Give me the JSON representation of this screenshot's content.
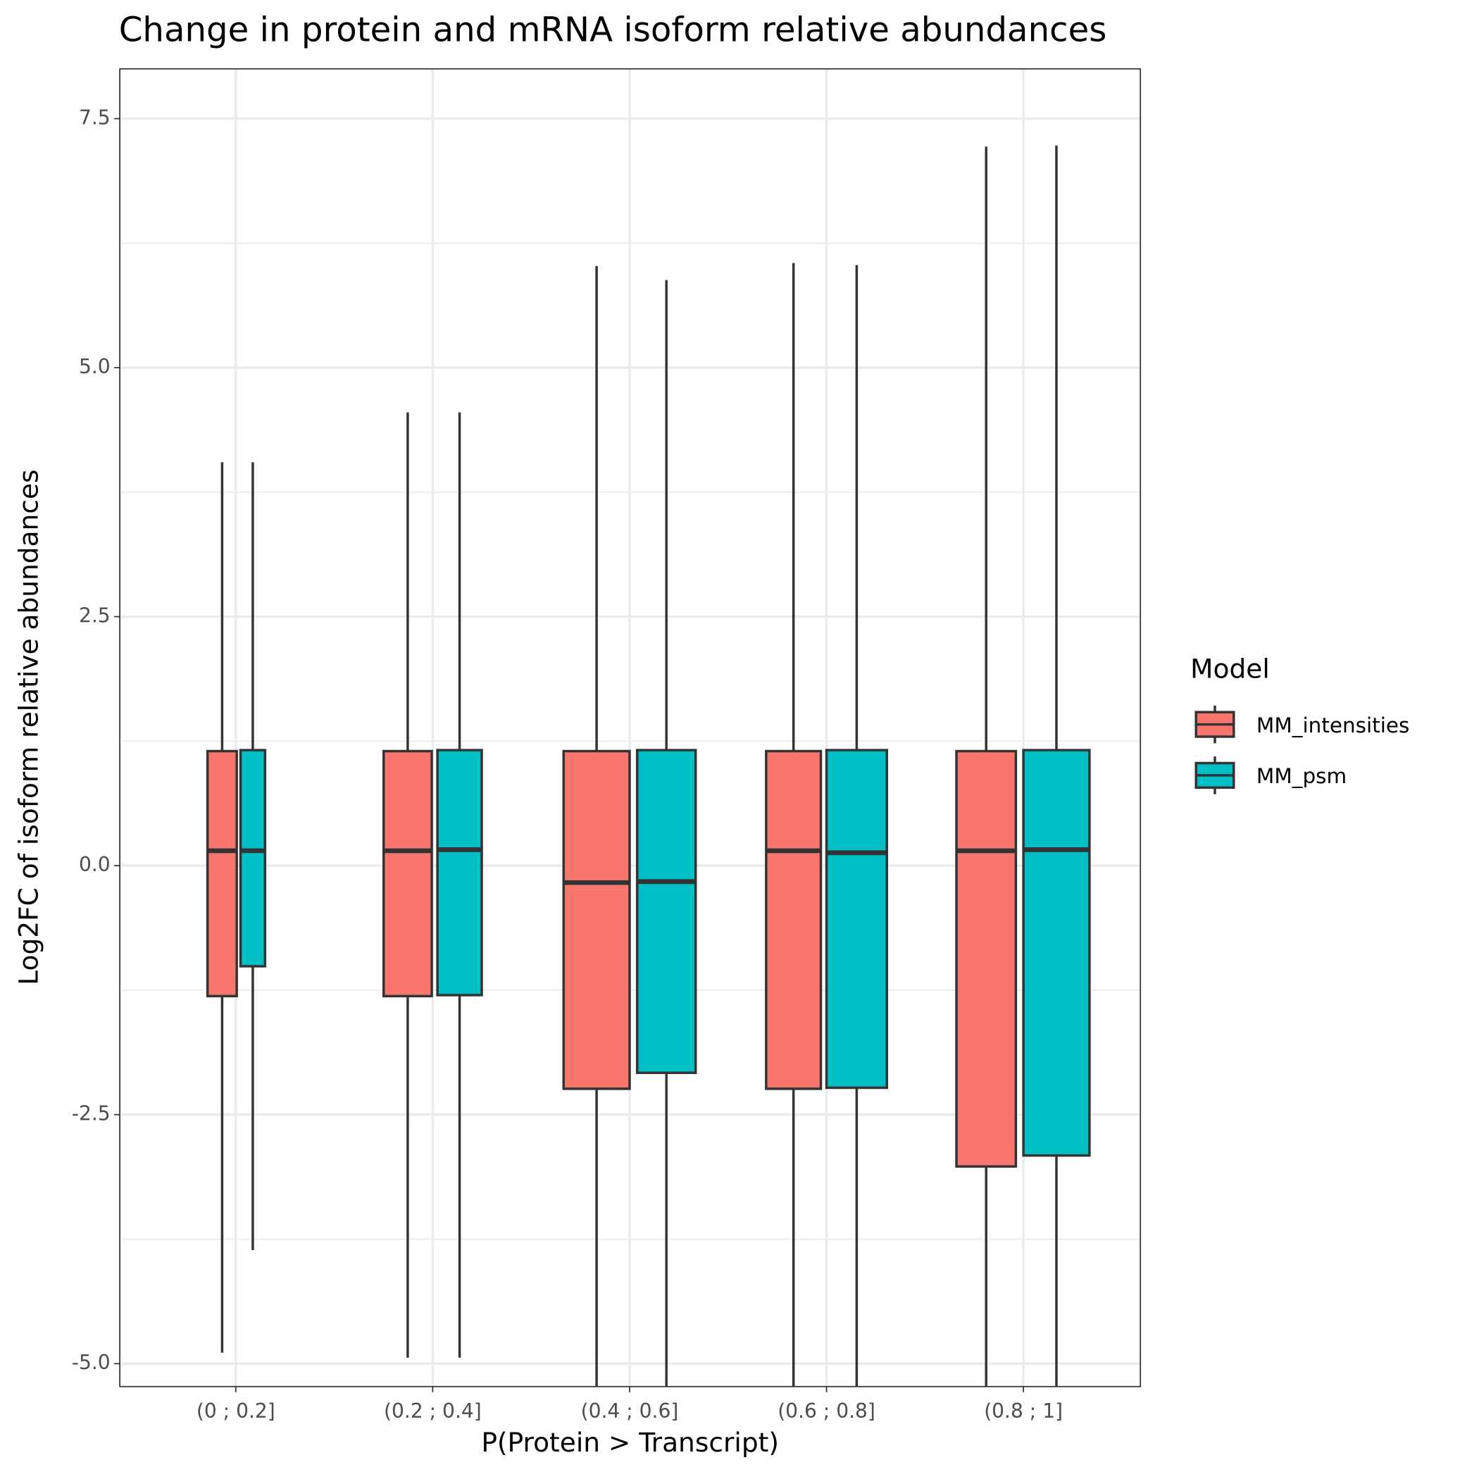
{
  "chart_data": {
    "type": "boxplot",
    "title": "Change in protein and mRNA isoform relative abundances",
    "x_label": "P(Protein > Transcript)",
    "y_label": "Log2FC of isoform relative abundances",
    "legend_title": "Model",
    "categories": [
      "(0 ; 0.2]",
      "(0.2 ; 0.4]",
      "(0.4 ; 0.6]",
      "(0.6 ; 0.8]",
      "(0.8 ; 1]"
    ],
    "ylim": [
      -5.23,
      8.0
    ],
    "yticks": [
      {
        "value": -5,
        "label": "-5.0"
      },
      -2.5,
      {
        "value": 0,
        "label": "0.0"
      },
      2.5,
      {
        "value": 5,
        "label": "5.0"
      },
      7.5
    ],
    "yminor": [
      -3.75,
      -1.25,
      1.25,
      3.75,
      6.25
    ],
    "grid": true,
    "series": [
      {
        "name": "MM_intensities",
        "color": "#f8766d",
        "whisker_high": [
          4.05,
          4.55,
          6.02,
          6.05,
          7.22
        ],
        "q3": [
          1.15,
          1.15,
          1.15,
          1.15,
          1.15
        ],
        "median": [
          0.15,
          0.15,
          -0.17,
          0.15,
          0.15
        ],
        "q1": [
          -1.31,
          -1.31,
          -2.24,
          -2.24,
          -3.02
        ],
        "whisker_low": [
          -4.89,
          -4.94,
          -5.3,
          -5.3,
          -5.3
        ]
      },
      {
        "name": "MM_psm",
        "color": "#00bfc4",
        "whisker_high": [
          4.05,
          4.55,
          5.88,
          6.03,
          7.23
        ],
        "q3": [
          1.16,
          1.16,
          1.16,
          1.16,
          1.16
        ],
        "median": [
          0.15,
          0.16,
          -0.16,
          0.13,
          0.16
        ],
        "q1": [
          -1.01,
          -1.3,
          -2.08,
          -2.23,
          -2.91
        ],
        "whisker_low": [
          -3.86,
          -4.94,
          -5.3,
          -5.3,
          -5.3
        ]
      }
    ]
  }
}
